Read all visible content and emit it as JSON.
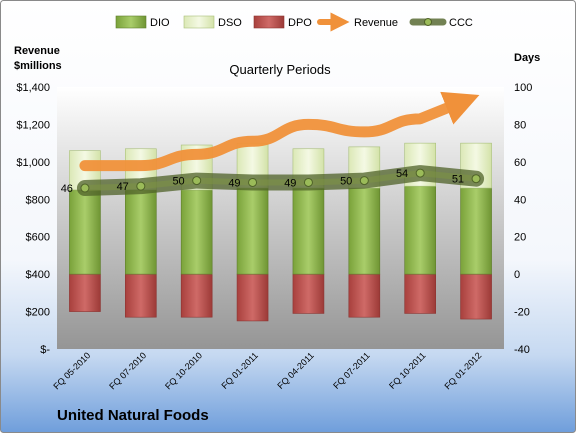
{
  "chart_data": {
    "type": "bar",
    "title": "Quarterly Periods",
    "company": "United Natural Foods",
    "y_left_label": [
      "Revenue",
      "$millions"
    ],
    "y_right_label": "Days",
    "y_left_range": [
      0,
      1400
    ],
    "y_left_ticks": [
      "$-",
      "$200",
      "$400",
      "$600",
      "$800",
      "$1,000",
      "$1,200",
      "$1,400"
    ],
    "y_right_range": [
      -40,
      100
    ],
    "y_right_ticks": [
      "-40",
      "-20",
      "0",
      "20",
      "40",
      "60",
      "80",
      "100"
    ],
    "categories": [
      "FQ 05-2010",
      "FQ 07-2010",
      "FQ 10-2010",
      "FQ 01-2011",
      "FQ 04-2011",
      "FQ 07-2011",
      "FQ 10-2011",
      "FQ 01-2012"
    ],
    "series": [
      {
        "name": "DIO",
        "values": [
          45,
          45,
          45,
          46,
          46,
          46,
          47,
          46
        ],
        "color": "#8db54a"
      },
      {
        "name": "DSO",
        "values": [
          21,
          22,
          24,
          24,
          21,
          22,
          23,
          24
        ],
        "color": "#e6f0c8"
      },
      {
        "name": "DPO",
        "values": [
          -20,
          -23,
          -23,
          -25,
          -21,
          -23,
          -21,
          -24
        ],
        "color": "#c0504d"
      },
      {
        "name": "Revenue",
        "values": [
          980,
          980,
          1040,
          1110,
          1200,
          1160,
          1230,
          1350
        ],
        "color": "#f0913a"
      },
      {
        "name": "CCC",
        "values": [
          46,
          47,
          50,
          49,
          49,
          50,
          54,
          51
        ],
        "color": "#4f6228"
      }
    ],
    "ccc_labels": [
      "46",
      "47",
      "50",
      "49",
      "49",
      "50",
      "54",
      "51"
    ],
    "legend_position": "top",
    "grid": false
  }
}
